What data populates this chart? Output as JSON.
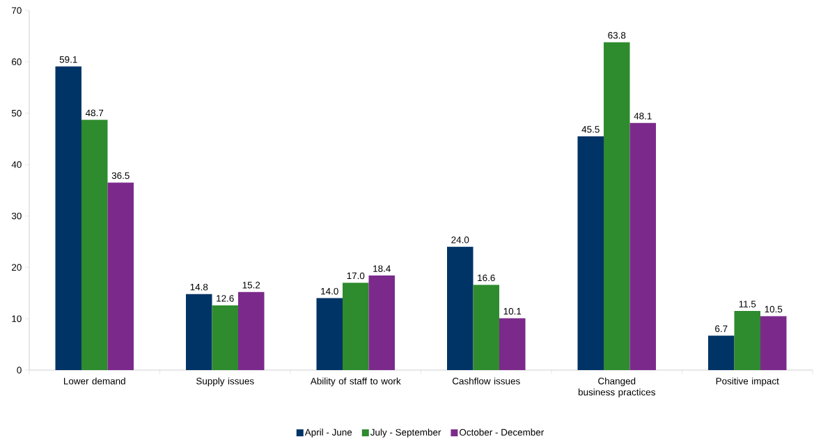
{
  "chart_data": {
    "type": "bar",
    "categories": [
      "Lower demand",
      "Supply issues",
      "Ability of staff to work",
      "Cashflow issues",
      "Changed business practices",
      "Positive impact"
    ],
    "series": [
      {
        "name": "April - June",
        "color": "#003366",
        "values": [
          59.1,
          14.8,
          14.0,
          24.0,
          45.5,
          6.7
        ],
        "value_labels": [
          "59.1",
          "14.8",
          "14.0",
          "24.0",
          "45.5",
          "6.7"
        ]
      },
      {
        "name": "July - September",
        "color": "#2e8b2e",
        "values": [
          48.7,
          12.6,
          17.0,
          16.6,
          63.8,
          11.5
        ],
        "value_labels": [
          "48.7",
          "12.6",
          "17.0",
          "16.6",
          "63.8",
          "11.5"
        ]
      },
      {
        "name": "October - December",
        "color": "#7b2a8b",
        "values": [
          36.5,
          15.2,
          18.4,
          10.1,
          48.1,
          10.5
        ],
        "value_labels": [
          "36.5",
          "15.2",
          "18.4",
          "10.1",
          "48.1",
          "10.5"
        ]
      }
    ],
    "ylim": [
      0,
      70
    ],
    "yticks": [
      0,
      10,
      20,
      30,
      40,
      50,
      60,
      70
    ],
    "legend": "bottom",
    "grid": false
  }
}
